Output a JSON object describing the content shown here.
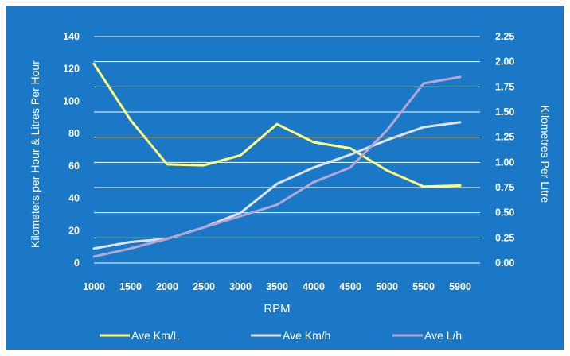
{
  "chart_data": {
    "type": "line",
    "x": [
      "1000",
      "1500",
      "2000",
      "2500",
      "3000",
      "3500",
      "4000",
      "4500",
      "5000",
      "5500",
      "5900"
    ],
    "xlabel": "RPM",
    "ylabel_left": "Kilometers per Hour & Litres Per Hour",
    "ylabel_right": "Kilometres Per Litre",
    "y_left_ticks": [
      "0",
      "20",
      "40",
      "60",
      "80",
      "100",
      "120",
      "140"
    ],
    "y_right_ticks": [
      "0.00",
      "0.25",
      "0.50",
      "0.75",
      "1.00",
      "1.25",
      "1.50",
      "1.75",
      "2.00",
      "2.25"
    ],
    "ylim_left": [
      0,
      140
    ],
    "ylim_right": [
      0,
      2.25
    ],
    "grid": true,
    "legend_position": "bottom",
    "series": [
      {
        "name": "Ave Km/L",
        "axis": "right",
        "color": "#ffff7a",
        "values": [
          1.98,
          1.42,
          0.98,
          0.97,
          1.07,
          1.38,
          1.2,
          1.14,
          0.92,
          0.76,
          0.77
        ]
      },
      {
        "name": "Ave Km/h",
        "axis": "left",
        "color": "#dde3ec",
        "values": [
          9,
          13,
          15,
          22,
          31,
          49,
          59,
          67,
          76,
          84,
          87
        ]
      },
      {
        "name": "Ave L/h",
        "axis": "left",
        "color": "#b5a6d6",
        "values": [
          4,
          9,
          15,
          22,
          29,
          36,
          50,
          59,
          82,
          111,
          115
        ]
      }
    ]
  }
}
